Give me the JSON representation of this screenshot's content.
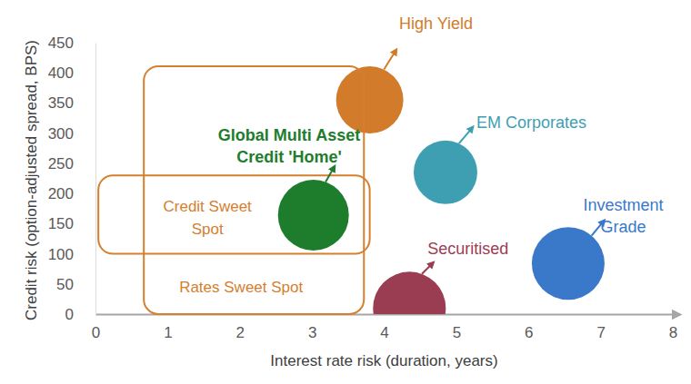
{
  "chart_data": {
    "type": "bubble",
    "x_label": "Interest rate risk (duration, years)",
    "y_label": "Credit risk (option-adjusted spread, BPS)",
    "xlim": [
      0,
      8
    ],
    "xticks": [
      0,
      1,
      2,
      3,
      4,
      5,
      6,
      7,
      8
    ],
    "ylim": [
      0,
      450
    ],
    "yticks": [
      0,
      50,
      100,
      150,
      200,
      250,
      300,
      350,
      400,
      450
    ],
    "grid": false,
    "series": [
      {
        "name": "High Yield",
        "color": "#d27b2a",
        "x": [
          3.8
        ],
        "values": [
          355
        ],
        "size": [
          37
        ]
      },
      {
        "name": "EM Corporates",
        "color": "#3f9fb2",
        "x": [
          4.85
        ],
        "values": [
          235
        ],
        "size": [
          35
        ]
      },
      {
        "name": "Investment Grade",
        "color": "#3a78c9",
        "x": [
          6.55
        ],
        "values": [
          84
        ],
        "size": [
          40
        ]
      },
      {
        "name": "Securitised",
        "color": "#9b3d52",
        "x": [
          4.35
        ],
        "values": [
          10
        ],
        "size": [
          40
        ]
      },
      {
        "name": "Global Multi Asset Credit 'Home'",
        "color": "#1e7d2c",
        "x": [
          3.02
        ],
        "values": [
          164
        ],
        "size": [
          39
        ]
      }
    ],
    "regions": [
      {
        "label": "Credit Sweet Spot",
        "color": "#d4802f",
        "x": [
          0.04,
          3.8
        ],
        "y": [
          100,
          230
        ]
      },
      {
        "label": "Rates Sweet Spot",
        "color": "#d4802f",
        "x": [
          0.67,
          3.72
        ],
        "y": [
          0,
          411
        ]
      }
    ]
  }
}
